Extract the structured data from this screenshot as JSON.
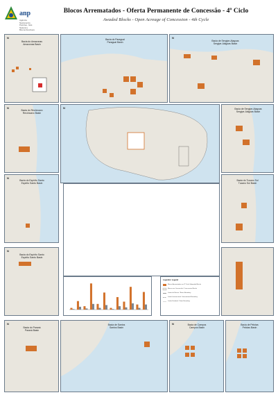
{
  "header": {
    "logo_text": "anp",
    "logo_subtitle": "Agência Nacional do Petróleo, Gás Natural e Biocombustíveis",
    "title": "Blocos Arrematados - Oferta Permanente de Concessão - 4º Ciclo",
    "subtitle": "Awaded Blocks - Open Acreage of Concession - 4th Cycle"
  },
  "north_symbol": "N",
  "basins": [
    {
      "label": "Bacia do Amazonas\nAmazonas Basin"
    },
    {
      "label": "Bacia do Paraguai\nParaguai Basin"
    },
    {
      "label": "Bacia de Sergipe-Alagoas\nSergipe-Alagoas Basin"
    },
    {
      "label": "Bacia do Recôncavo\nRecôncavo Basin"
    },
    {
      "label": "Bacia de Sergipe-Alagoas\nSergipe-Alagoas Basin"
    },
    {
      "label": "Bacia do Espírito Santo\nEspírito Santo Basin"
    },
    {
      "label": "Bacia do Tucano Sul\nTucano Sul Basin"
    },
    {
      "label": "Bacia do Espírito Santo\nEspírito Santo Basin"
    },
    {
      "label": "Bacia do Paraná\nParaná Basin"
    },
    {
      "label": "Bacia de Santos\nSantos Basin"
    },
    {
      "label": "Bacia de Campos\nCampos Basin"
    },
    {
      "label": "Bacia de Pelotas\nPelotas Basin"
    }
  ],
  "legend": {
    "heading": "Legenda / Legend",
    "items": [
      "Blocos Arrematados no 4º Ciclo / Awarded Blocks",
      "Blocos em Concessão / Concession Blocks",
      "Limite de Bacias / Basin Boundary",
      "Limite Internacional / International Boundary",
      "Limite Estadual / State Boundary"
    ]
  },
  "chart_data": {
    "type": "bar",
    "categories": [
      "",
      "",
      "",
      "",
      "",
      "",
      "",
      "",
      "",
      "",
      "",
      ""
    ],
    "series": [
      {
        "values": [
          3,
          15,
          6,
          46,
          10,
          30,
          3,
          22,
          14,
          40,
          9,
          31
        ]
      },
      {
        "values": [
          1,
          5,
          2,
          10,
          3,
          8,
          1,
          6,
          4,
          11,
          3,
          9
        ]
      }
    ],
    "colors": [
      "#d2722b",
      "#7d8792"
    ],
    "ylim": [
      0,
      50
    ]
  },
  "colors": {
    "block": "#d2722b",
    "ocean": "#cfe3ef",
    "land": "#e9e6de",
    "frame": "#6a7a8a"
  }
}
